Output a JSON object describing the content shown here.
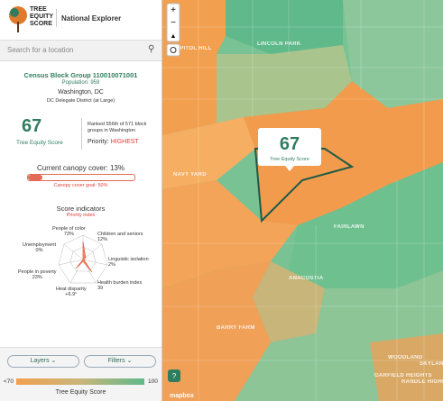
{
  "header": {
    "logo": [
      "TREE",
      "EQUITY",
      "SCORE"
    ],
    "app_name": "National Explorer"
  },
  "search": {
    "placeholder": "Search for a location"
  },
  "details": {
    "block_group": "Census Block Group 110010071001",
    "population": "Population: 959",
    "city": "Washington, DC",
    "district": "DC Delegate District (at Large)",
    "score": "67",
    "score_label": "Tree Equity Score",
    "rank": "Ranked 556th of 571 block groups in Washington",
    "priority_label": "Priority:",
    "priority": "HIGHEST",
    "canopy": "Current canopy cover: 13%",
    "canopy_goal": "Canopy cover goal: 50%"
  },
  "indicators": {
    "title": "Score indicators",
    "subtitle": "Priority index",
    "items": [
      {
        "name": "People of color",
        "value": "73%"
      },
      {
        "name": "Children and seniors",
        "value": "12%"
      },
      {
        "name": "Linguistic isolation",
        "value": "2%"
      },
      {
        "name": "Health burden index",
        "value": "39"
      },
      {
        "name": "Heat disparity",
        "value": "+6.9°"
      },
      {
        "name": "People in poverty",
        "value": "23%"
      },
      {
        "name": "Unemployment",
        "value": "0%"
      }
    ]
  },
  "buttons": {
    "layers": "Layers",
    "filters": "Filters"
  },
  "legend": {
    "min": "<70",
    "max": "100",
    "title": "Tree Equity Score"
  },
  "map": {
    "popup_score": "67",
    "popup_label": "Tree Equity Score",
    "attribution": "mapbox",
    "help": "?",
    "places": [
      "CAPITOL HILL",
      "LINCOLN PARK",
      "NAVY YARD",
      "ANACOSTIA",
      "FAIRLAWN",
      "BARRY FARM",
      "WOODLAND",
      "RANDLE HIGHLANDS",
      "GARFIELD HEIGHTS",
      "SKYLAND"
    ]
  }
}
